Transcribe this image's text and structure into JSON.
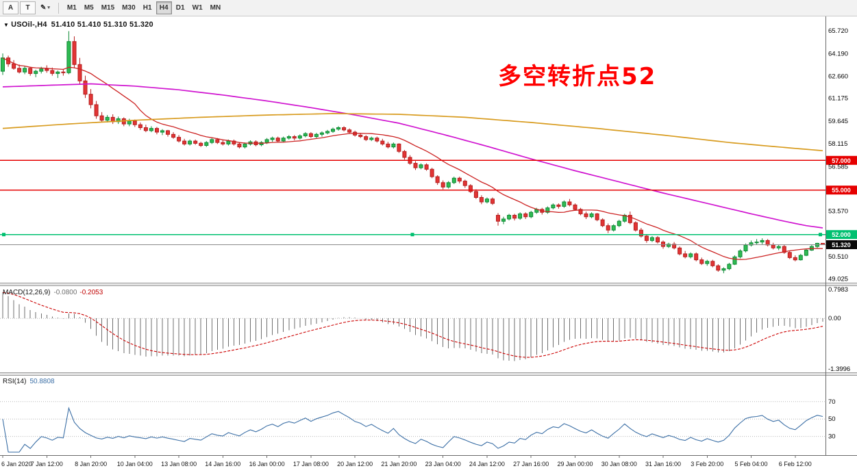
{
  "toolbar": {
    "buttons": [
      {
        "label": "A",
        "name": "pointer-tool-button",
        "boxed": true,
        "dropdown": false
      },
      {
        "label": "T",
        "name": "text-tool-button",
        "boxed": true,
        "dropdown": false
      },
      {
        "label": "✎",
        "name": "draw-tool-dropdown",
        "boxed": false,
        "dropdown": true
      }
    ],
    "timeframes": [
      "M1",
      "M5",
      "M15",
      "M30",
      "H1",
      "H4",
      "D1",
      "W1",
      "MN"
    ],
    "active_timeframe": "H4"
  },
  "chart": {
    "dropdown_glyph": "▼",
    "title": "USOil-,H4",
    "ohlc_display": "51.410 51.410 51.310 51.320"
  },
  "annotation": {
    "text": "多空转折点52",
    "color": "#FF0000"
  },
  "chart_data": {
    "type": "candlestick",
    "symbol": "USOil-",
    "timeframe": "H4",
    "last_ohlc": {
      "open": 51.41,
      "high": 51.41,
      "low": 51.31,
      "close": 51.32
    },
    "ylim": [
      48.9,
      66.6
    ],
    "grid": false,
    "price_axis_labels": [
      {
        "v": 65.72,
        "text": "65.720"
      },
      {
        "v": 64.19,
        "text": "64.190"
      },
      {
        "v": 62.66,
        "text": "62.660"
      },
      {
        "v": 61.175,
        "text": "61.175"
      },
      {
        "v": 59.645,
        "text": "59.645"
      },
      {
        "v": 58.115,
        "text": "58.115"
      },
      {
        "v": 56.585,
        "text": "56.585"
      },
      {
        "v": 53.57,
        "text": "53.570"
      },
      {
        "v": 50.51,
        "text": "50.510"
      },
      {
        "v": 49.025,
        "text": "49.025"
      }
    ],
    "time_labels": [
      "6 Jan 2020",
      "7 Jan 12:00",
      "8 Jan 20:00",
      "10 Jan 04:00",
      "13 Jan 08:00",
      "14 Jan 16:00",
      "16 Jan 00:00",
      "17 Jan 08:00",
      "20 Jan 12:00",
      "21 Jan 20:00",
      "23 Jan 04:00",
      "24 Jan 12:00",
      "27 Jan 16:00",
      "29 Jan 00:00",
      "30 Jan 08:00",
      "31 Jan 16:00",
      "3 Feb 20:00",
      "5 Feb 04:00",
      "6 Feb 12:00"
    ],
    "bars_per_time_label": 8,
    "colors": {
      "bull": "#2FBA52",
      "bull_border": "#0E8A36",
      "bear": "#E23535",
      "bear_border": "#B51D1D",
      "ma_fast": "#CC2222",
      "ma_mid": "#D014D0",
      "ma_slow": "#D89B1E",
      "hline_red": "#E60000",
      "hline_green": "#00C070",
      "price_line": "#8a8a8a",
      "price_tag_bg": "#0a0a0a",
      "macd_hist": "#6E6E6E",
      "macd_signal": "#CC0000",
      "rsi_line": "#3A6EA5",
      "axis_text": "#000000"
    },
    "candles": [
      [
        63.0,
        64.2,
        62.75,
        63.9
      ],
      [
        63.9,
        64.05,
        63.3,
        63.5
      ],
      [
        63.5,
        63.75,
        63.1,
        63.2
      ],
      [
        63.2,
        63.45,
        62.85,
        62.95
      ],
      [
        62.95,
        63.35,
        62.8,
        63.2
      ],
      [
        63.2,
        63.3,
        62.7,
        62.85
      ],
      [
        62.85,
        63.1,
        62.6,
        63.0
      ],
      [
        63.0,
        63.3,
        62.85,
        63.15
      ],
      [
        63.15,
        63.4,
        62.9,
        63.05
      ],
      [
        63.05,
        63.25,
        62.7,
        62.85
      ],
      [
        62.85,
        63.05,
        62.55,
        62.95
      ],
      [
        62.95,
        63.15,
        62.7,
        62.9
      ],
      [
        62.9,
        65.7,
        62.8,
        65.0
      ],
      [
        65.0,
        65.35,
        63.2,
        63.45
      ],
      [
        63.45,
        63.9,
        62.1,
        62.35
      ],
      [
        62.35,
        62.7,
        61.2,
        61.45
      ],
      [
        61.45,
        61.8,
        60.5,
        60.75
      ],
      [
        60.75,
        61.0,
        59.8,
        60.0
      ],
      [
        60.0,
        60.25,
        59.55,
        59.7
      ],
      [
        59.7,
        60.05,
        59.55,
        59.9
      ],
      [
        59.9,
        60.1,
        59.45,
        59.6
      ],
      [
        59.6,
        59.95,
        59.45,
        59.8
      ],
      [
        59.8,
        59.9,
        59.3,
        59.45
      ],
      [
        59.45,
        59.8,
        59.3,
        59.65
      ],
      [
        59.65,
        59.75,
        59.25,
        59.4
      ],
      [
        59.4,
        59.55,
        59.05,
        59.2
      ],
      [
        59.2,
        59.4,
        58.9,
        59.0
      ],
      [
        59.0,
        59.3,
        58.9,
        59.15
      ],
      [
        59.15,
        59.25,
        58.75,
        58.9
      ],
      [
        58.9,
        59.1,
        58.7,
        59.0
      ],
      [
        59.0,
        59.05,
        58.6,
        58.75
      ],
      [
        58.75,
        58.9,
        58.45,
        58.55
      ],
      [
        58.55,
        58.7,
        58.2,
        58.3
      ],
      [
        58.3,
        58.45,
        58.0,
        58.1
      ],
      [
        58.1,
        58.4,
        58.0,
        58.3
      ],
      [
        58.3,
        58.4,
        58.05,
        58.15
      ],
      [
        58.15,
        58.25,
        57.9,
        58.0
      ],
      [
        58.0,
        58.3,
        57.9,
        58.2
      ],
      [
        58.2,
        58.5,
        58.1,
        58.4
      ],
      [
        58.4,
        58.5,
        58.1,
        58.2
      ],
      [
        58.2,
        58.35,
        58.0,
        58.1
      ],
      [
        58.1,
        58.4,
        58.0,
        58.3
      ],
      [
        58.3,
        58.4,
        58.0,
        58.1
      ],
      [
        58.1,
        58.2,
        57.8,
        57.9
      ],
      [
        57.9,
        58.2,
        57.8,
        58.1
      ],
      [
        58.1,
        58.35,
        58.0,
        58.25
      ],
      [
        58.25,
        58.35,
        57.95,
        58.05
      ],
      [
        58.05,
        58.3,
        57.95,
        58.2
      ],
      [
        58.2,
        58.5,
        58.1,
        58.4
      ],
      [
        58.4,
        58.6,
        58.25,
        58.5
      ],
      [
        58.5,
        58.6,
        58.2,
        58.3
      ],
      [
        58.3,
        58.6,
        58.2,
        58.5
      ],
      [
        58.5,
        58.7,
        58.4,
        58.6
      ],
      [
        58.6,
        58.7,
        58.35,
        58.5
      ],
      [
        58.5,
        58.75,
        58.4,
        58.65
      ],
      [
        58.65,
        58.9,
        58.55,
        58.8
      ],
      [
        58.8,
        58.9,
        58.5,
        58.6
      ],
      [
        58.6,
        58.85,
        58.5,
        58.75
      ],
      [
        58.75,
        58.95,
        58.6,
        58.85
      ],
      [
        58.85,
        59.05,
        58.75,
        58.95
      ],
      [
        58.95,
        59.2,
        58.85,
        59.1
      ],
      [
        59.1,
        59.3,
        59.0,
        59.2
      ],
      [
        59.2,
        59.3,
        58.95,
        59.05
      ],
      [
        59.05,
        59.15,
        58.8,
        58.9
      ],
      [
        58.9,
        59.0,
        58.6,
        58.7
      ],
      [
        58.7,
        58.85,
        58.5,
        58.6
      ],
      [
        58.6,
        58.7,
        58.3,
        58.4
      ],
      [
        58.4,
        58.6,
        58.3,
        58.5
      ],
      [
        58.5,
        58.6,
        58.2,
        58.3
      ],
      [
        58.3,
        58.45,
        58.0,
        58.1
      ],
      [
        58.1,
        58.25,
        57.8,
        57.9
      ],
      [
        57.9,
        58.2,
        57.8,
        58.1
      ],
      [
        58.1,
        58.15,
        57.5,
        57.6
      ],
      [
        57.6,
        57.7,
        57.05,
        57.2
      ],
      [
        57.2,
        57.35,
        56.7,
        56.8
      ],
      [
        56.8,
        56.95,
        56.35,
        56.5
      ],
      [
        56.5,
        56.8,
        56.4,
        56.7
      ],
      [
        56.7,
        56.8,
        56.3,
        56.4
      ],
      [
        56.4,
        56.5,
        55.8,
        55.9
      ],
      [
        55.9,
        56.0,
        55.35,
        55.5
      ],
      [
        55.5,
        55.65,
        55.05,
        55.2
      ],
      [
        55.2,
        55.6,
        55.1,
        55.5
      ],
      [
        55.5,
        55.9,
        55.4,
        55.8
      ],
      [
        55.8,
        55.9,
        55.45,
        55.6
      ],
      [
        55.6,
        55.7,
        55.15,
        55.3
      ],
      [
        55.3,
        55.4,
        54.8,
        54.9
      ],
      [
        54.9,
        55.05,
        54.4,
        54.5
      ],
      [
        54.5,
        54.65,
        54.05,
        54.2
      ],
      [
        54.2,
        54.5,
        54.1,
        54.4
      ],
      [
        54.4,
        54.5,
        54.0,
        54.1
      ],
      [
        53.3,
        53.45,
        52.6,
        52.9
      ],
      [
        52.9,
        53.2,
        52.7,
        53.05
      ],
      [
        53.05,
        53.4,
        52.95,
        53.3
      ],
      [
        53.3,
        53.4,
        52.95,
        53.1
      ],
      [
        53.1,
        53.5,
        53.0,
        53.4
      ],
      [
        53.4,
        53.5,
        53.05,
        53.2
      ],
      [
        53.2,
        53.6,
        53.1,
        53.5
      ],
      [
        53.5,
        53.8,
        53.4,
        53.7
      ],
      [
        53.7,
        53.8,
        53.35,
        53.5
      ],
      [
        53.5,
        53.9,
        53.4,
        53.8
      ],
      [
        53.8,
        54.1,
        53.7,
        54.0
      ],
      [
        54.0,
        54.1,
        53.75,
        53.9
      ],
      [
        53.9,
        54.3,
        53.8,
        54.2
      ],
      [
        54.2,
        54.4,
        53.9,
        54.0
      ],
      [
        54.0,
        54.1,
        53.6,
        53.7
      ],
      [
        53.7,
        53.8,
        53.3,
        53.4
      ],
      [
        53.4,
        53.55,
        53.05,
        53.2
      ],
      [
        53.2,
        53.5,
        53.1,
        53.4
      ],
      [
        53.4,
        53.45,
        52.9,
        53.0
      ],
      [
        53.0,
        53.1,
        52.5,
        52.6
      ],
      [
        52.6,
        52.75,
        52.1,
        52.3
      ],
      [
        52.3,
        52.7,
        52.2,
        52.6
      ],
      [
        52.6,
        53.0,
        52.5,
        52.9
      ],
      [
        52.9,
        53.4,
        52.8,
        53.3
      ],
      [
        53.3,
        53.55,
        52.7,
        52.8
      ],
      [
        52.8,
        52.9,
        52.2,
        52.3
      ],
      [
        52.3,
        52.45,
        51.8,
        51.9
      ],
      [
        51.9,
        52.0,
        51.45,
        51.6
      ],
      [
        51.6,
        51.9,
        51.5,
        51.8
      ],
      [
        51.8,
        51.9,
        51.4,
        51.5
      ],
      [
        51.5,
        51.6,
        51.05,
        51.2
      ],
      [
        51.2,
        51.45,
        51.1,
        51.35
      ],
      [
        51.35,
        51.5,
        51.0,
        51.1
      ],
      [
        51.1,
        51.2,
        50.6,
        50.7
      ],
      [
        50.7,
        50.9,
        50.4,
        50.5
      ],
      [
        50.5,
        50.8,
        50.4,
        50.7
      ],
      [
        50.7,
        50.8,
        50.2,
        50.3
      ],
      [
        50.3,
        50.45,
        49.95,
        50.05
      ],
      [
        50.05,
        50.3,
        49.9,
        50.2
      ],
      [
        50.2,
        50.3,
        49.8,
        49.9
      ],
      [
        49.9,
        50.0,
        49.5,
        49.6
      ],
      [
        49.6,
        49.8,
        49.4,
        49.7
      ],
      [
        49.7,
        50.1,
        49.6,
        50.0
      ],
      [
        50.0,
        50.6,
        49.95,
        50.5
      ],
      [
        50.5,
        51.0,
        50.4,
        50.9
      ],
      [
        50.9,
        51.4,
        50.8,
        51.3
      ],
      [
        51.3,
        51.6,
        51.2,
        51.45
      ],
      [
        51.45,
        51.7,
        51.3,
        51.5
      ],
      [
        51.5,
        51.75,
        51.35,
        51.6
      ],
      [
        51.6,
        51.7,
        51.2,
        51.3
      ],
      [
        51.3,
        51.45,
        51.0,
        51.1
      ],
      [
        51.1,
        51.3,
        50.95,
        51.2
      ],
      [
        51.2,
        51.3,
        50.7,
        50.8
      ],
      [
        50.8,
        50.9,
        50.35,
        50.45
      ],
      [
        50.45,
        50.6,
        50.2,
        50.3
      ],
      [
        50.3,
        50.7,
        50.25,
        50.6
      ],
      [
        50.6,
        51.05,
        50.55,
        50.95
      ],
      [
        50.95,
        51.3,
        50.9,
        51.2
      ],
      [
        51.2,
        51.45,
        51.1,
        51.41
      ],
      [
        51.41,
        51.41,
        51.31,
        51.32
      ]
    ],
    "moving_averages": {
      "fast": {
        "type": "sma",
        "period": 13,
        "color_key": "ma_fast"
      },
      "mid": {
        "color_key": "ma_mid",
        "anchors": [
          [
            0,
            61.95
          ],
          [
            8,
            62.05
          ],
          [
            16,
            62.15
          ],
          [
            24,
            62.0
          ],
          [
            32,
            61.75
          ],
          [
            40,
            61.4
          ],
          [
            48,
            61.0
          ],
          [
            56,
            60.55
          ],
          [
            64,
            60.05
          ],
          [
            72,
            59.5
          ],
          [
            80,
            58.75
          ],
          [
            88,
            57.95
          ],
          [
            96,
            57.1
          ],
          [
            104,
            56.3
          ],
          [
            112,
            55.55
          ],
          [
            120,
            54.8
          ],
          [
            128,
            54.1
          ],
          [
            136,
            53.4
          ],
          [
            142,
            52.9
          ],
          [
            146,
            52.6
          ],
          [
            149,
            52.45
          ]
        ]
      },
      "slow": {
        "color_key": "ma_slow",
        "anchors": [
          [
            0,
            59.15
          ],
          [
            12,
            59.45
          ],
          [
            24,
            59.7
          ],
          [
            36,
            59.9
          ],
          [
            48,
            60.05
          ],
          [
            60,
            60.15
          ],
          [
            72,
            60.1
          ],
          [
            84,
            59.9
          ],
          [
            96,
            59.55
          ],
          [
            108,
            59.15
          ],
          [
            120,
            58.7
          ],
          [
            132,
            58.2
          ],
          [
            141,
            57.9
          ],
          [
            149,
            57.65
          ]
        ]
      }
    },
    "horizontal_lines": [
      {
        "value": 57.0,
        "label": "57.000",
        "color_key": "hline_red",
        "selected": false
      },
      {
        "value": 55.0,
        "label": "55.000",
        "color_key": "hline_red",
        "selected": false
      },
      {
        "value": 52.0,
        "label": "52.000",
        "color_key": "hline_green",
        "selected": true
      }
    ],
    "current_price": {
      "value": 51.32,
      "label": "51.320"
    },
    "indicators": [
      {
        "name": "MACD",
        "label": "MACD(12,26,9)",
        "value_main": "-0.0800",
        "value_signal": "-0.2053",
        "params": {
          "fast": 12,
          "slow": 26,
          "signal": 9
        },
        "ylim": [
          -1.42,
          0.82
        ],
        "axis_labels": [
          {
            "v": 0.7983,
            "text": "0.7983"
          },
          {
            "v": 0,
            "text": "0.00"
          },
          {
            "v": -1.3996,
            "text": "-1.3996"
          }
        ]
      },
      {
        "name": "RSI",
        "label": "RSI(14)",
        "value": "50.8808",
        "period": 14,
        "ylim": [
          10,
          95
        ],
        "levels": [
          70,
          50,
          30
        ],
        "axis_labels": [
          {
            "v": 70,
            "text": "70"
          },
          {
            "v": 50,
            "text": "50"
          },
          {
            "v": 30,
            "text": "30"
          }
        ]
      }
    ]
  }
}
